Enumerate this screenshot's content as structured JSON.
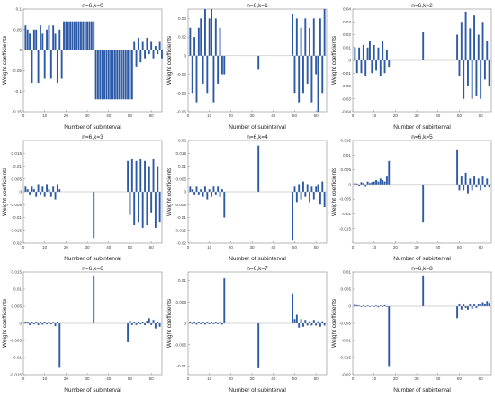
{
  "chart_data": [
    {
      "type": "bar",
      "title": "n=6,k=0",
      "xlabel": "Number of subinterval",
      "ylabel": "Weight coefficients",
      "xlim": [
        0,
        65
      ],
      "ylim": [
        -0.15,
        0.1
      ],
      "yticks": [
        0.1,
        0.05,
        0,
        -0.05,
        -0.1,
        -0.15
      ],
      "ytick_labels": [
        "0.1",
        "0.05",
        "0",
        "-0.05",
        "-0.1",
        "-0.15"
      ],
      "xticks": [
        0,
        10,
        20,
        30,
        40,
        50,
        60
      ],
      "xtick_labels": [
        "0",
        "10",
        "20",
        "30",
        "40",
        "50",
        "60"
      ],
      "series": [
        {
          "values": [
            0.06,
            0.05,
            0.04,
            -0.08,
            0.05,
            0.05,
            -0.08,
            0.06,
            0.04,
            -0.07,
            0.05,
            0.06,
            -0.07,
            0.06,
            0.04,
            -0.08,
            0.05,
            -0.07,
            0.07,
            0.07,
            0.07,
            0.07,
            0.07,
            0.07,
            0.07,
            0.07,
            0.07,
            0.07,
            0.07,
            0.07,
            0.07,
            0.07,
            0.07,
            -0.12,
            -0.12,
            -0.12,
            -0.12,
            -0.12,
            -0.12,
            -0.12,
            -0.12,
            -0.12,
            -0.12,
            -0.12,
            -0.12,
            -0.12,
            -0.12,
            -0.12,
            -0.12,
            -0.12,
            -0.12,
            0.02,
            -0.04,
            0.03,
            -0.03,
            0.02,
            -0.02,
            0.03,
            -0.01,
            0.02,
            -0.02,
            0.01,
            -0.01,
            0.02,
            -0.02
          ]
        }
      ]
    },
    {
      "type": "bar",
      "title": "n=6,k=1",
      "xlabel": "Number of subinterval",
      "ylabel": "Weight coefficients",
      "xlim": [
        0,
        65
      ],
      "ylim": [
        -0.06,
        0.05
      ],
      "yticks": [
        0.04,
        0.02,
        0,
        -0.02,
        -0.04,
        -0.06
      ],
      "ytick_labels": [
        "0.04",
        "0.02",
        "0",
        "-0.02",
        "-0.04",
        "-0.06"
      ],
      "xticks": [
        0,
        10,
        20,
        30,
        40,
        50,
        60
      ],
      "xtick_labels": [
        "0",
        "10",
        "20",
        "30",
        "40",
        "50",
        "60"
      ],
      "series": [
        {
          "values": [
            0.03,
            -0.04,
            0.02,
            -0.05,
            0.03,
            0.04,
            -0.03,
            0.05,
            -0.04,
            0.04,
            0.05,
            -0.05,
            0.04,
            -0.03,
            0.03,
            -0.02,
            -0.02,
            0,
            0,
            0,
            0,
            0,
            0,
            0,
            0,
            0,
            0,
            0,
            0,
            0,
            0,
            0,
            -0.015,
            0,
            0,
            0,
            0,
            0,
            0,
            0,
            0,
            0,
            0,
            0,
            0,
            0,
            0,
            0,
            0.045,
            -0.04,
            0.04,
            -0.05,
            0.03,
            -0.04,
            0.04,
            -0.03,
            0.03,
            -0.05,
            0.04,
            -0.02,
            -0.06,
            0.04,
            -0.04,
            0.05
          ]
        }
      ]
    },
    {
      "type": "bar",
      "title": "n=6,k=2",
      "xlabel": "Number of subinterval",
      "ylabel": "Weight coefficients",
      "xlim": [
        0,
        65
      ],
      "ylim": [
        -0.04,
        0.04
      ],
      "yticks": [
        0.04,
        0.03,
        0.02,
        0.01,
        0,
        -0.01,
        -0.02,
        -0.03,
        -0.04
      ],
      "ytick_labels": [
        "0.04",
        "0.03",
        "0.02",
        "0.01",
        "0",
        "-0.01",
        "-0.02",
        "-0.03",
        "-0.04"
      ],
      "xticks": [
        0,
        10,
        20,
        30,
        40,
        50,
        60
      ],
      "xtick_labels": [
        "0",
        "10",
        "20",
        "30",
        "40",
        "50",
        "60"
      ],
      "series": [
        {
          "values": [
            0.01,
            -0.01,
            0.01,
            -0.01,
            0.012,
            -0.012,
            0.01,
            0.015,
            -0.01,
            0.012,
            -0.008,
            0.01,
            -0.012,
            0.015,
            -0.01,
            0.008,
            -0.005,
            0,
            0,
            0,
            0,
            0,
            0,
            0,
            0,
            0,
            0,
            0,
            0,
            0,
            0,
            0,
            0.022,
            0,
            0,
            0,
            0,
            0,
            0,
            0,
            0,
            0,
            0,
            0,
            0,
            0,
            0,
            0,
            0.02,
            -0.012,
            0.03,
            -0.03,
            0.038,
            -0.02,
            0.025,
            -0.03,
            0.035,
            -0.028,
            0.02,
            -0.03,
            0.03,
            -0.015,
            0.015,
            -0.02
          ]
        }
      ]
    },
    {
      "type": "bar",
      "title": "n=6,k=3",
      "xlabel": "Number of subinterval",
      "ylabel": "Weight coefficients",
      "xlim": [
        0,
        65
      ],
      "ylim": [
        -0.02,
        0.02
      ],
      "yticks": [
        0.015,
        0.01,
        0.005,
        0,
        -0.005,
        -0.01,
        -0.015,
        -0.02
      ],
      "ytick_labels": [
        "0.015",
        "0.01",
        "0.005",
        "0",
        "-0.005",
        "-0.01",
        "-0.015",
        "-0.02"
      ],
      "xticks": [
        0,
        10,
        20,
        30,
        40,
        50,
        60
      ],
      "xtick_labels": [
        "0",
        "10",
        "20",
        "30",
        "40",
        "50",
        "60"
      ],
      "series": [
        {
          "values": [
            0.002,
            0.001,
            -0.001,
            0.002,
            0.001,
            -0.002,
            0.003,
            -0.001,
            0.002,
            -0.002,
            0.003,
            0.001,
            -0.002,
            0.002,
            -0.003,
            0.003,
            0.001,
            0,
            0,
            0,
            0,
            0,
            0,
            0,
            0,
            0,
            0,
            0,
            0,
            0,
            0,
            0,
            -0.018,
            0,
            0,
            0,
            0,
            0,
            0,
            0,
            0,
            0,
            0,
            0,
            0,
            0,
            0,
            0,
            0.012,
            -0.009,
            0.013,
            -0.013,
            0.012,
            -0.012,
            0.013,
            -0.014,
            0.012,
            -0.013,
            0.01,
            -0.008,
            0.013,
            -0.014,
            0.01,
            -0.012
          ]
        }
      ]
    },
    {
      "type": "bar",
      "title": "n=6,k=4",
      "xlabel": "Number of subinterval",
      "ylabel": "Weight coefficients",
      "xlim": [
        0,
        65
      ],
      "ylim": [
        -0.02,
        0.02
      ],
      "yticks": [
        0.02,
        0.015,
        0.01,
        0.005,
        0,
        -0.005,
        -0.01,
        -0.015,
        -0.02
      ],
      "ytick_labels": [
        "0.02",
        "0.015",
        "0.01",
        "0.005",
        "0",
        "-0.005",
        "-0.01",
        "-0.015",
        "-0.02"
      ],
      "xticks": [
        0,
        10,
        20,
        30,
        40,
        50,
        60
      ],
      "xtick_labels": [
        "0",
        "10",
        "20",
        "30",
        "40",
        "50",
        "60"
      ],
      "series": [
        {
          "values": [
            0.002,
            0.001,
            -0.001,
            0.002,
            -0.001,
            0.001,
            -0.002,
            0.002,
            -0.003,
            0.001,
            -0.002,
            0.002,
            -0.001,
            0.002,
            -0.002,
            0.001,
            -0.01,
            0,
            0,
            0,
            0,
            0,
            0,
            0,
            0,
            0,
            0,
            0,
            0,
            0,
            0,
            0,
            0.018,
            0,
            0,
            0,
            0,
            0,
            0,
            0,
            0,
            0,
            0,
            0,
            0,
            0,
            0,
            0,
            -0.019,
            0.002,
            -0.004,
            0.003,
            -0.003,
            0.004,
            -0.002,
            0.003,
            -0.004,
            0.002,
            -0.003,
            0.002,
            0.003,
            -0.005,
            0.004,
            -0.006
          ]
        }
      ]
    },
    {
      "type": "bar",
      "title": "n=6,k=5",
      "xlabel": "Number of subinterval",
      "ylabel": "Weight coefficients",
      "xlim": [
        0,
        65
      ],
      "ylim": [
        -0.02,
        0.015
      ],
      "yticks": [
        0.015,
        0.01,
        0.005,
        0,
        -0.005,
        -0.01,
        -0.015
      ],
      "ytick_labels": [
        "0.015",
        "0.01",
        "0.005",
        "0",
        "-0.005",
        "-0.01",
        "-0.015"
      ],
      "xticks": [
        0,
        10,
        20,
        30,
        40,
        50,
        60
      ],
      "xtick_labels": [
        "0",
        "10",
        "20",
        "30",
        "40",
        "50",
        "60"
      ],
      "series": [
        {
          "values": [
            0.0005,
            0.0003,
            -0.0005,
            0.0008,
            0.0005,
            -0.0008,
            0.001,
            0.0005,
            0.0008,
            0.001,
            0.0015,
            0.001,
            0.002,
            0.0015,
            0.001,
            0.003,
            0.008,
            0,
            0,
            0,
            0,
            0,
            0,
            0,
            0,
            0,
            0,
            0,
            0,
            0,
            0,
            0,
            -0.013,
            0,
            0,
            0,
            0,
            0,
            0,
            0,
            0,
            0,
            0,
            0,
            0,
            0,
            0,
            0,
            0.012,
            -0.002,
            0.003,
            -0.002,
            0.004,
            -0.003,
            0.002,
            -0.002,
            0.003,
            -0.001,
            0.002,
            -0.002,
            0.003,
            -0.001,
            0.002,
            -0.001
          ]
        }
      ]
    },
    {
      "type": "bar",
      "title": "n=6,k=6",
      "xlabel": "Number of subinterval",
      "ylabel": "Weight coefficients",
      "xlim": [
        0,
        65
      ],
      "ylim": [
        -0.015,
        0.015
      ],
      "yticks": [
        0.015,
        0.01,
        0.005,
        0,
        -0.005,
        -0.01,
        -0.015
      ],
      "ytick_labels": [
        "0.015",
        "0.01",
        "0.005",
        "0",
        "-0.005",
        "-0.01",
        "-0.015"
      ],
      "xticks": [
        0,
        10,
        20,
        30,
        40,
        50,
        60
      ],
      "xtick_labels": [
        "0",
        "10",
        "20",
        "30",
        "40",
        "50",
        "60"
      ],
      "series": [
        {
          "values": [
            0.0005,
            0.0003,
            -0.0005,
            0.0003,
            -0.0003,
            0.0005,
            -0.0005,
            0.0003,
            -0.0004,
            0.0003,
            -0.0003,
            0.0004,
            -0.0003,
            0.0002,
            -0.0008,
            0.0005,
            -0.013,
            0,
            0,
            0,
            0,
            0,
            0,
            0,
            0,
            0,
            0,
            0,
            0,
            0,
            0,
            0,
            0.014,
            0,
            0,
            0,
            0,
            0,
            0,
            0,
            0,
            0,
            0,
            0,
            0,
            0,
            0,
            0,
            -0.0055,
            0.0008,
            -0.0005,
            0.0005,
            -0.0005,
            0.0005,
            -0.0003,
            0.0003,
            -0.0005,
            0.0008,
            0.0015,
            -0.0005,
            0.001,
            -0.0015,
            0.0005,
            -0.001
          ]
        }
      ]
    },
    {
      "type": "bar",
      "title": "n=6,k=7",
      "xlabel": "Number of subinterval",
      "ylabel": "Weight coefficients",
      "xlim": [
        0,
        65
      ],
      "ylim": [
        -0.012,
        0.012
      ],
      "yticks": [
        0.01,
        0.005,
        0,
        -0.005,
        -0.01
      ],
      "ytick_labels": [
        "0.01",
        "0.005",
        "0",
        "-0.005",
        "-0.01"
      ],
      "xticks": [
        0,
        10,
        20,
        30,
        40,
        50,
        60
      ],
      "xtick_labels": [
        "0",
        "10",
        "20",
        "30",
        "40",
        "50",
        "60"
      ],
      "series": [
        {
          "values": [
            0.0003,
            -0.0002,
            0.0004,
            -0.0003,
            0.0003,
            -0.0002,
            0.0003,
            -0.0003,
            0.0002,
            -0.0002,
            0.0003,
            -0.0002,
            0.0003,
            -0.0002,
            0.0002,
            -0.0003,
            0.0105,
            0,
            0,
            0,
            0,
            0,
            0,
            0,
            0,
            0,
            0,
            0,
            0,
            0,
            0,
            0,
            -0.0105,
            0,
            0,
            0,
            0,
            0,
            0,
            0,
            0,
            0,
            0,
            0,
            0,
            0,
            0,
            0,
            0.007,
            0.001,
            0.002,
            -0.001,
            0.001,
            -0.0008,
            0.0008,
            -0.0005,
            0.0005,
            -0.0005,
            0.0008,
            -0.0005,
            0.0005,
            -0.0008,
            0.0005,
            -0.0005
          ]
        }
      ]
    },
    {
      "type": "bar",
      "title": "n=6,k=8",
      "xlabel": "Number of subinterval",
      "ylabel": "Weight coefficients",
      "xlim": [
        0,
        65
      ],
      "ylim": [
        -0.02,
        0.01
      ],
      "yticks": [
        0.01,
        0.005,
        0,
        -0.005,
        -0.01,
        -0.015,
        -0.02
      ],
      "ytick_labels": [
        "0.01",
        "0.005",
        "0",
        "-0.005",
        "-0.01",
        "-0.015",
        "-0.02"
      ],
      "xticks": [
        0,
        10,
        20,
        30,
        40,
        50,
        60
      ],
      "xtick_labels": [
        "0",
        "10",
        "20",
        "30",
        "40",
        "50",
        "60"
      ],
      "series": [
        {
          "values": [
            0.0005,
            0.0003,
            0.0002,
            -0.0002,
            0.0002,
            -0.0002,
            0.0002,
            -0.0002,
            0.0001,
            -0.0002,
            0.0002,
            -0.0003,
            0.0002,
            -0.0002,
            0.0003,
            -0.0002,
            -0.0175,
            0,
            0,
            0,
            0,
            0,
            0,
            0,
            0,
            0,
            0,
            0,
            0,
            0,
            0,
            0,
            0.009,
            0,
            0,
            0,
            0,
            0,
            0,
            0,
            0,
            0,
            0,
            0,
            0,
            0,
            0,
            0,
            -0.0035,
            0.0008,
            -0.001,
            0.0005,
            -0.0005,
            -0.001,
            0.0005,
            -0.0008,
            0.0005,
            -0.0005,
            0.0006,
            0.0008,
            0.0012,
            0.0008,
            0.0015,
            0.001
          ]
        }
      ]
    }
  ]
}
